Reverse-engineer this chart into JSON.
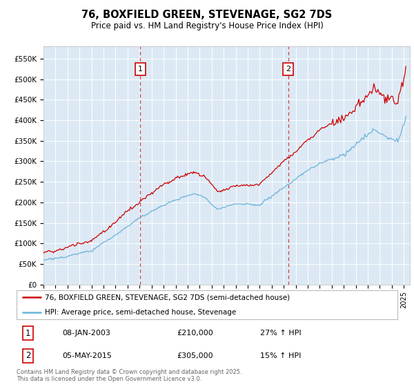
{
  "title": "76, BOXFIELD GREEN, STEVENAGE, SG2 7DS",
  "subtitle": "Price paid vs. HM Land Registry's House Price Index (HPI)",
  "plot_bg_color": "#dce9f5",
  "ylim": [
    0,
    580000
  ],
  "yticks": [
    0,
    50000,
    100000,
    150000,
    200000,
    250000,
    300000,
    350000,
    400000,
    450000,
    500000,
    550000
  ],
  "ytick_labels": [
    "£0",
    "£50K",
    "£100K",
    "£150K",
    "£200K",
    "£250K",
    "£300K",
    "£350K",
    "£400K",
    "£450K",
    "£500K",
    "£550K"
  ],
  "hpi_color": "#6bb3d9",
  "price_color": "#cc0000",
  "marker1_x": 2003.05,
  "marker1_label": "1",
  "marker2_x": 2015.37,
  "marker2_label": "2",
  "legend_line1": "76, BOXFIELD GREEN, STEVENAGE, SG2 7DS (semi-detached house)",
  "legend_line2": "HPI: Average price, semi-detached house, Stevenage",
  "annotation1_num": "1",
  "annotation1_date": "08-JAN-2003",
  "annotation1_price": "£210,000",
  "annotation1_hpi": "27% ↑ HPI",
  "annotation2_num": "2",
  "annotation2_date": "05-MAY-2015",
  "annotation2_price": "£305,000",
  "annotation2_hpi": "15% ↑ HPI",
  "footer": "Contains HM Land Registry data © Crown copyright and database right 2025.\nThis data is licensed under the Open Government Licence v3.0."
}
